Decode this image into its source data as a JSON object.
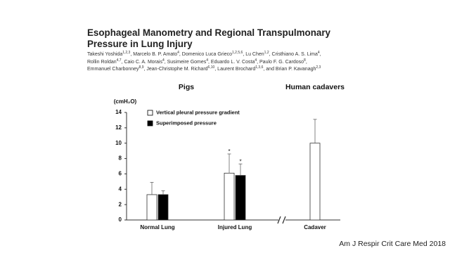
{
  "header": {
    "title": "Esophageal Manometry and Regional Transpulmonary Pressure in Lung Injury",
    "author_lines": [
      [
        {
          "text": "Takeshi Yoshida",
          "sup": "1,2,3"
        },
        {
          "text": ", Marcelo B. P. Amato",
          "sup": "4"
        },
        {
          "text": ", Domenico Luca Grieco",
          "sup": "1,2,5,6"
        },
        {
          "text": ", Lu Chen",
          "sup": "1,2"
        },
        {
          "text": ", Cristhiano A. S. Lima",
          "sup": "4"
        },
        {
          "text": ","
        }
      ],
      [
        {
          "text": "Rollin Roldan",
          "sup": "4,7"
        },
        {
          "text": ", Caio C. A. Morais",
          "sup": "4"
        },
        {
          "text": ", Susimeire Gomes",
          "sup": "4"
        },
        {
          "text": ", Eduardo L. V. Costa",
          "sup": "4"
        },
        {
          "text": ", Paulo F. G. Cardoso",
          "sup": "8"
        },
        {
          "text": ","
        }
      ],
      [
        {
          "text": "Emmanuel Charbonney",
          "sup": "8,9"
        },
        {
          "text": ", Jean-Christophe M. Richard",
          "sup": "6,10"
        },
        {
          "text": ", Laurent Brochard",
          "sup": "1,3,6"
        },
        {
          "text": ", and Brian P. Kavanagh",
          "sup": "2,3"
        }
      ]
    ]
  },
  "citation": "Am J Respir Crit Care Med 2018",
  "chart_data": {
    "type": "bar",
    "group_labels": [
      "Pigs",
      "Human cadavers"
    ],
    "y_label": "(cmH₂O)",
    "categories": [
      "Normal Lung",
      "Injured Lung",
      "Cadaver"
    ],
    "series": [
      {
        "name": "Vertical pleural pressure gradient",
        "color": "#ffffff",
        "values": [
          3.3,
          6.1,
          10.0
        ],
        "errors": [
          1.6,
          2.5,
          3.1
        ]
      },
      {
        "name": "Superimposed pressure",
        "color": "#000000",
        "values": [
          3.3,
          5.8,
          null
        ],
        "errors": [
          0.5,
          1.5,
          null
        ]
      }
    ],
    "annotations": [
      {
        "text": "*",
        "category": 1,
        "series": 0
      },
      {
        "text": "*",
        "category": 1,
        "series": 1
      }
    ],
    "ylim": [
      0,
      14
    ],
    "yticks": [
      0,
      2,
      4,
      6,
      8,
      10,
      12,
      14
    ],
    "legend": "upper left",
    "axis_break": true
  }
}
